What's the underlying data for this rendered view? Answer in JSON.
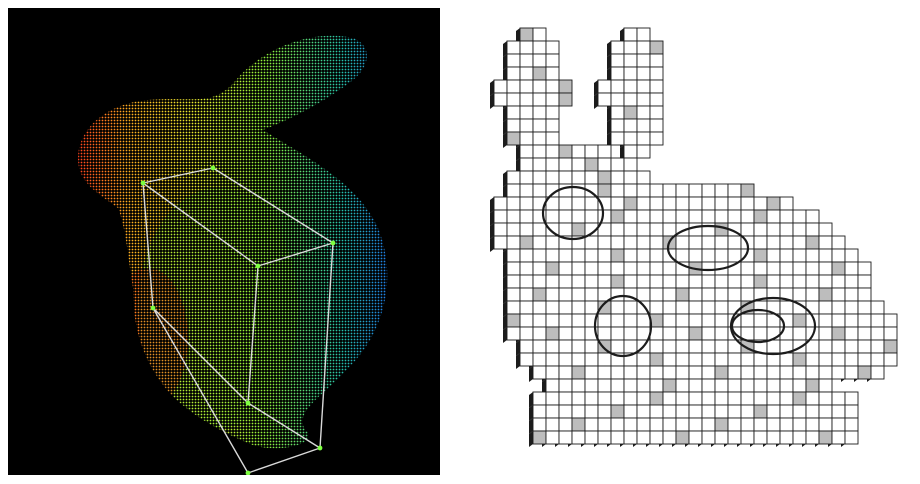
{
  "figure": {
    "panels": [
      {
        "id": "point-cloud",
        "background": "#000000",
        "colormap": [
          "#ff2a1a",
          "#ffb020",
          "#e8ee30",
          "#8ef03a",
          "#27c4a8",
          "#1a5cff"
        ],
        "box_color": "#d9d9d9",
        "box_vertex_color": "#7dff40"
      },
      {
        "id": "voxel-grid",
        "background": "#ffffff",
        "face_color": "#ffffff",
        "shadow_color": "#1c1c1c",
        "mid_color": "#bdbdbd"
      }
    ]
  }
}
